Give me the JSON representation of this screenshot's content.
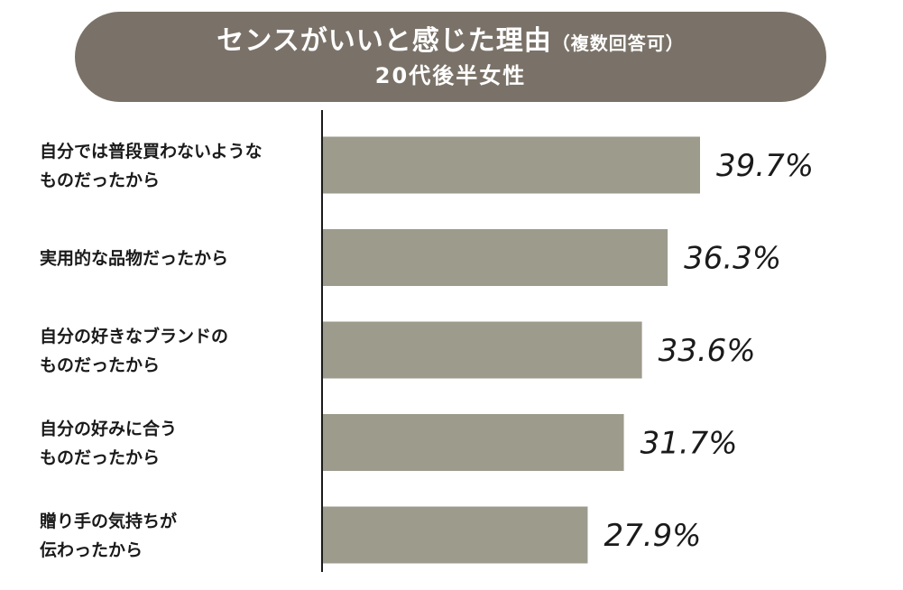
{
  "header": {
    "title": "センスがいいと感じた理由",
    "note": "（複数回答可）",
    "subtitle": "20代後半女性"
  },
  "colors": {
    "pill": "#7a7268",
    "bar": "#9d9b8c",
    "axis": "#1a1a1a"
  },
  "chart_data": {
    "type": "bar",
    "orientation": "horizontal",
    "title": "センスがいいと感じた理由（複数回答可）",
    "subtitle": "20代後半女性",
    "categories": [
      [
        "自分では普段買わないような",
        "ものだったから"
      ],
      [
        "実用的な品物だったから"
      ],
      [
        "自分の好きなブランドの",
        "ものだったから"
      ],
      [
        "自分の好みに合う",
        "ものだったから"
      ],
      [
        "贈り手の気持ちが",
        "伝わったから"
      ]
    ],
    "values": [
      39.7,
      36.3,
      33.6,
      31.7,
      27.9
    ],
    "value_labels": [
      "39.7%",
      "36.3%",
      "33.6%",
      "31.7%",
      "27.9%"
    ],
    "unit": "%",
    "xlim": [
      0,
      46
    ],
    "grid": false,
    "legend": "none"
  }
}
